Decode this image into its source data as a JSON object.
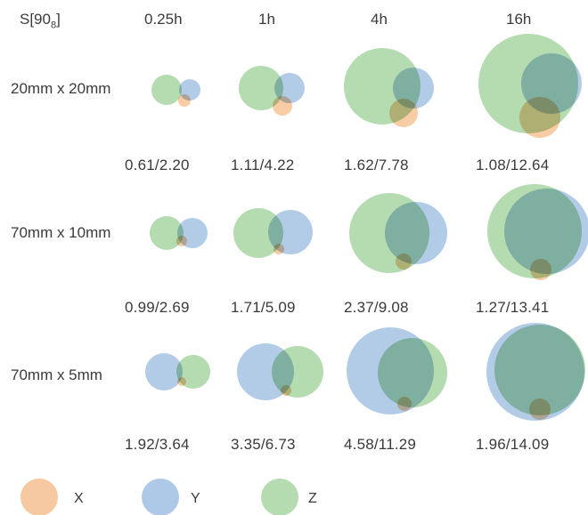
{
  "header": {
    "corner_label": "S[90",
    "corner_sub": "8",
    "corner_close": "]",
    "times": [
      "0.25h",
      "1h",
      "4h",
      "16h"
    ]
  },
  "rows": [
    {
      "label": "20mm x 20mm",
      "ratios": [
        "0.61/2.20",
        "1.11/4.22",
        "1.62/7.78",
        "1.08/12.64"
      ]
    },
    {
      "label": "70mm x 10mm",
      "ratios": [
        "0.99/2.69",
        "1.71/5.09",
        "2.37/9.08",
        "1.27/13.41"
      ]
    },
    {
      "label": "70mm x 5mm",
      "ratios": [
        "1.92/3.64",
        "3.35/6.73",
        "4.58/11.29",
        "1.96/14.09"
      ]
    }
  ],
  "legend": [
    {
      "label": "X",
      "color": "#f6c08f"
    },
    {
      "label": "Y",
      "color": "#9fbfe3"
    },
    {
      "label": "Z",
      "color": "#a8d5a3"
    }
  ]
}
